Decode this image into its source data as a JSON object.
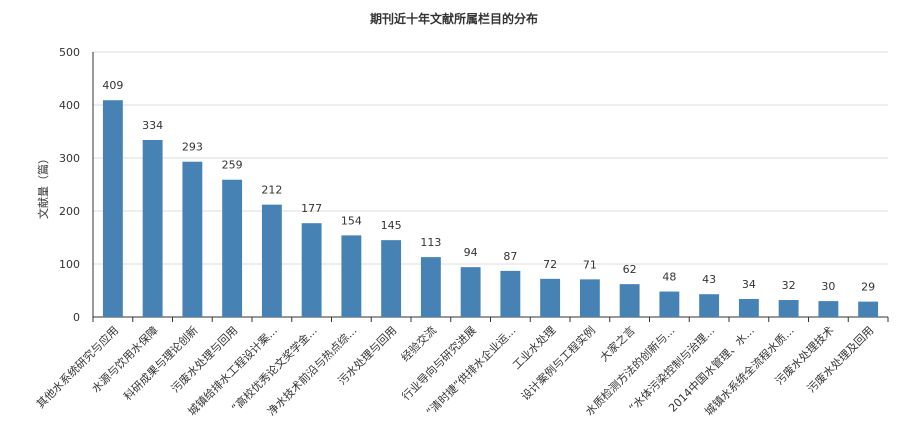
{
  "chart_data": {
    "type": "bar",
    "title": "期刊近十年文献所属栏目的分布",
    "ylabel": "文献量（篇）",
    "ylim": [
      0,
      500
    ],
    "yticks": [
      0,
      100,
      200,
      300,
      400,
      500
    ],
    "grid": true,
    "bar_color": "#4682b4",
    "categories": [
      "其他水系统研究与应用",
      "水源与饮用水保障",
      "科研成果与理论创新",
      "污废水处理与回用",
      "城镇给排水工程设计案...",
      "“高校优秀论文奖学金...",
      "净水技术前沿与热点综...",
      "污水处理与回用",
      "经验交流",
      "行业导向与研究进展",
      "“清时捷”供排水企业运...",
      "工业水处理",
      "设计案例与工程实例",
      "大家之言",
      "水质检测方法的创新与...",
      "“水体污染控制与治理...",
      "2014中国水管理、水...",
      "城镇水系统全流程水质...",
      "污废水处理技术",
      "污废水处理及回用"
    ],
    "values": [
      409,
      334,
      293,
      259,
      212,
      177,
      154,
      145,
      113,
      94,
      87,
      72,
      71,
      62,
      48,
      43,
      34,
      32,
      30,
      29
    ]
  }
}
